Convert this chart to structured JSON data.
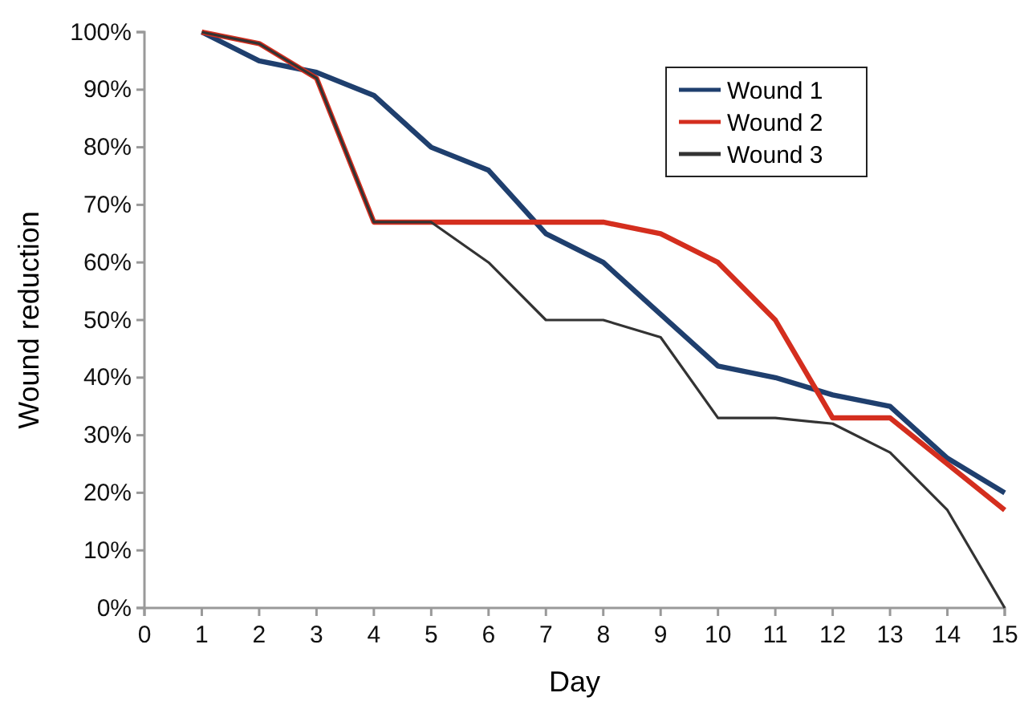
{
  "chart_data": {
    "type": "line",
    "xlabel": "Day",
    "ylabel": "Wound reduction",
    "x": [
      1,
      2,
      3,
      4,
      5,
      6,
      7,
      8,
      9,
      10,
      11,
      12,
      13,
      14,
      15
    ],
    "xlim": [
      0,
      15
    ],
    "xticks": [
      0,
      1,
      2,
      3,
      4,
      5,
      6,
      7,
      8,
      9,
      10,
      11,
      12,
      13,
      14,
      15
    ],
    "ylim": [
      0,
      100
    ],
    "yticks": [
      {
        "value": 0,
        "label": "0%"
      },
      {
        "value": 10,
        "label": "10%"
      },
      {
        "value": 20,
        "label": "20%"
      },
      {
        "value": 30,
        "label": "30%"
      },
      {
        "value": 40,
        "label": "40%"
      },
      {
        "value": 50,
        "label": "50%"
      },
      {
        "value": 60,
        "label": "60%"
      },
      {
        "value": 70,
        "label": "70%"
      },
      {
        "value": 80,
        "label": "80%"
      },
      {
        "value": 90,
        "label": "90%"
      },
      {
        "value": 100,
        "label": "100%"
      }
    ],
    "grid": false,
    "legend": "top right",
    "marker": "none",
    "line_style": "solid",
    "series": [
      {
        "name": "Wound 1",
        "color": "#1f3f6e",
        "values": [
          100,
          95,
          93,
          89,
          80,
          76,
          65,
          60,
          51,
          42,
          40,
          37,
          35,
          26,
          20
        ]
      },
      {
        "name": "Wound 2",
        "color": "#d42e1e",
        "values": [
          100,
          98,
          92,
          67,
          67,
          67,
          67,
          67,
          65,
          60,
          50,
          33,
          33,
          25,
          17
        ]
      },
      {
        "name": "Wound 3",
        "color": "#333333",
        "values": [
          100,
          98,
          92,
          67,
          67,
          60,
          50,
          50,
          47,
          33,
          33,
          32,
          27,
          17,
          0
        ]
      }
    ]
  }
}
